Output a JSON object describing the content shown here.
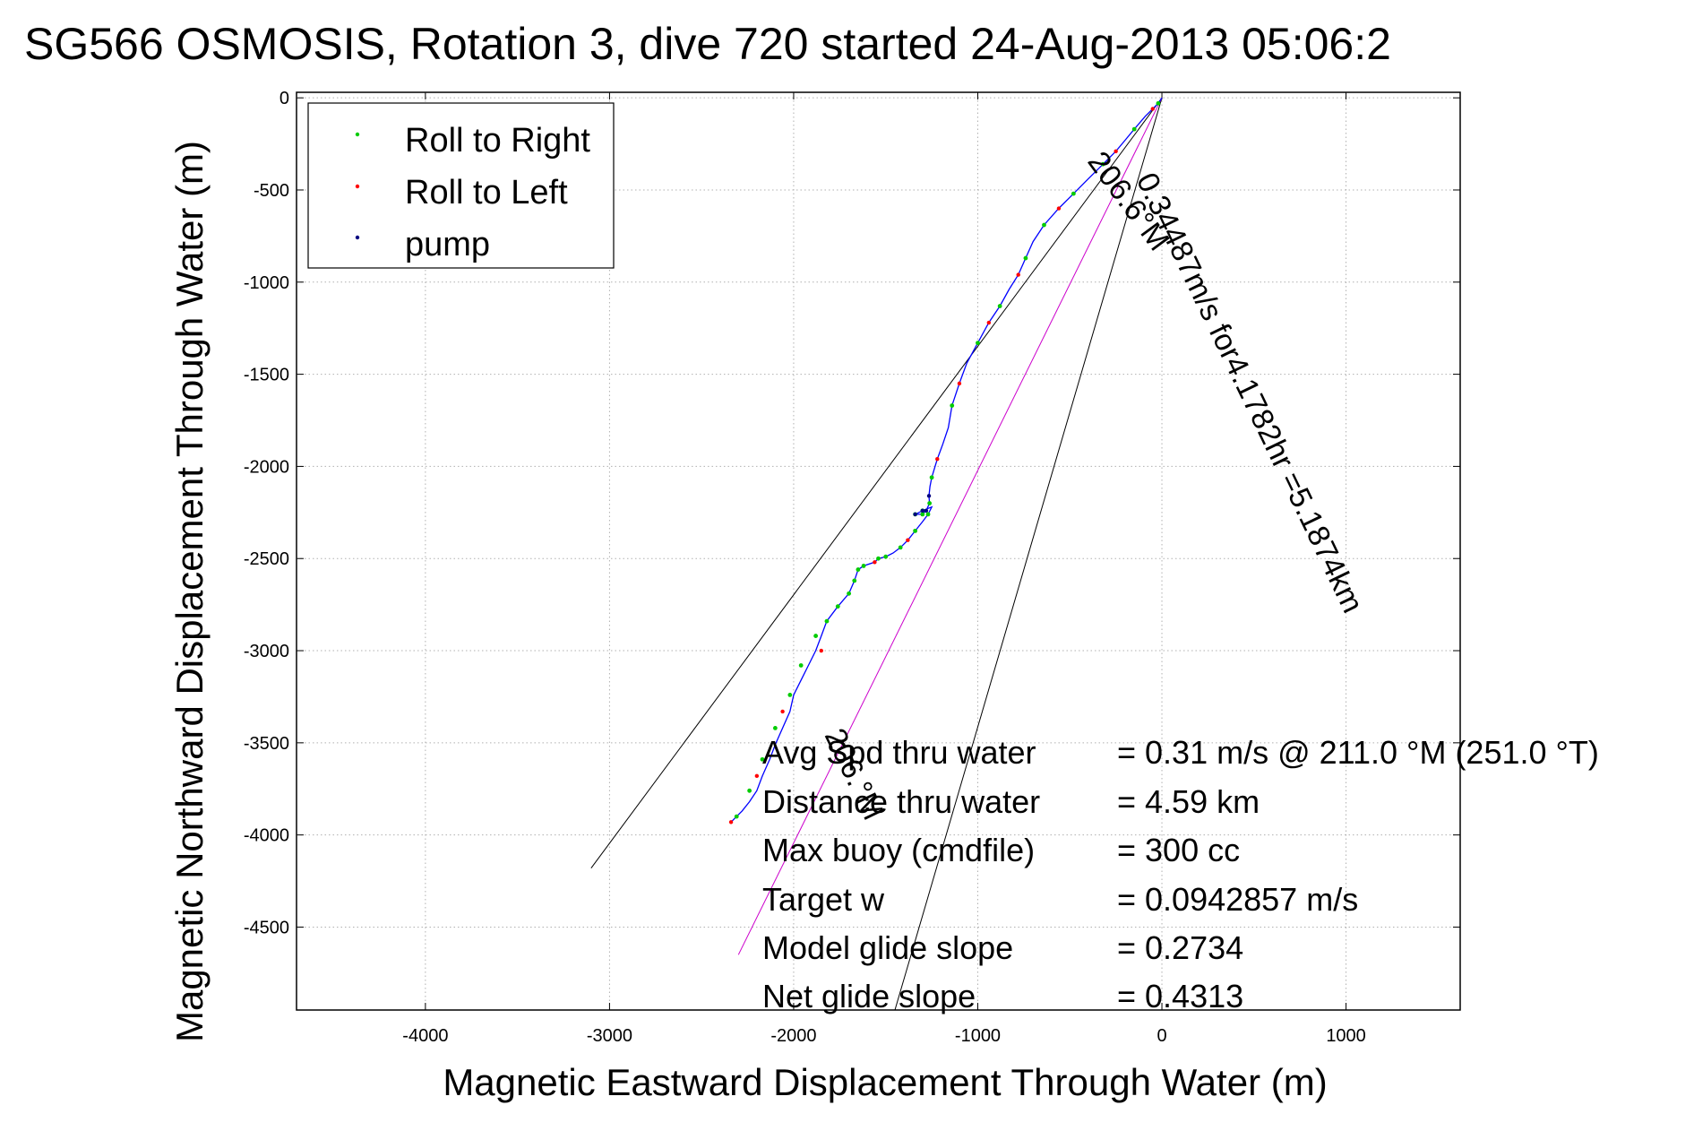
{
  "chart_data": {
    "type": "line",
    "title": "SG566 OSMOSIS, Rotation 3, dive 720 started 24-Aug-2013 05:06:2",
    "xlabel": "Magnetic Eastward Displacement Through Water (m)",
    "ylabel": "Magnetic Northward Displacement Through Water (m)",
    "xlim": [
      -4700,
      1620
    ],
    "ylim": [
      -4950,
      30
    ],
    "x_ticks": [
      -4000,
      -3000,
      -2000,
      -1000,
      0,
      1000
    ],
    "y_ticks": [
      0,
      -500,
      -1000,
      -1500,
      -2000,
      -2500,
      -3000,
      -3500,
      -4000,
      -4500
    ],
    "grid": true,
    "legend_position": "top-left",
    "legend": [
      {
        "label": "Roll to Right",
        "color": "#00cc00"
      },
      {
        "label": "Roll to Left",
        "color": "#ff0000"
      },
      {
        "label": "pump",
        "color": "#000080"
      }
    ],
    "track": {
      "color": "#0000ff",
      "x": [
        0,
        -20,
        -50,
        -90,
        -150,
        -200,
        -250,
        -320,
        -400,
        -480,
        -560,
        -640,
        -700,
        -740,
        -780,
        -830,
        -880,
        -940,
        -1000,
        -1060,
        -1100,
        -1140,
        -1160,
        -1190,
        -1220,
        -1250,
        -1260,
        -1265,
        -1262,
        -1280,
        -1300,
        -1340,
        -1300,
        -1250,
        -1270,
        -1300,
        -1340,
        -1380,
        -1420,
        -1460,
        -1500,
        -1540,
        -1560,
        -1620,
        -1650,
        -1670,
        -1700,
        -1760,
        -1820,
        -1850,
        -1880,
        -1920,
        -1960,
        -2000,
        -2020,
        -2060,
        -2100,
        -2130,
        -2170,
        -2200,
        -2240,
        -2280,
        -2310,
        -2340
      ],
      "y": [
        0,
        -30,
        -60,
        -100,
        -170,
        -230,
        -290,
        -360,
        -440,
        -520,
        -600,
        -690,
        -780,
        -870,
        -960,
        -1040,
        -1130,
        -1220,
        -1330,
        -1440,
        -1550,
        -1670,
        -1790,
        -1880,
        -1960,
        -2060,
        -2110,
        -2160,
        -2200,
        -2240,
        -2260,
        -2260,
        -2240,
        -2220,
        -2260,
        -2300,
        -2350,
        -2400,
        -2440,
        -2470,
        -2490,
        -2500,
        -2520,
        -2540,
        -2560,
        -2620,
        -2690,
        -2760,
        -2840,
        -2920,
        -3000,
        -3080,
        -3160,
        -3240,
        -3330,
        -3420,
        -3510,
        -3590,
        -3680,
        -3760,
        -3820,
        -3870,
        -3900,
        -3930
      ]
    },
    "roll_right": {
      "x": [
        -20,
        -150,
        -320,
        -480,
        -640,
        -740,
        -880,
        -1000,
        -1140,
        -1250,
        -1262,
        -1300,
        -1340,
        -1300,
        -1270,
        -1340,
        -1420,
        -1500,
        -1540,
        -1620,
        -1650,
        -1670,
        -1700,
        -1760,
        -1820,
        -1880,
        -1960,
        -2020,
        -2100,
        -2170,
        -2240,
        -2310
      ],
      "y": [
        -30,
        -170,
        -360,
        -520,
        -690,
        -870,
        -1130,
        -1330,
        -1670,
        -2060,
        -2200,
        -2260,
        -2260,
        -2240,
        -2260,
        -2350,
        -2440,
        -2490,
        -2500,
        -2540,
        -2560,
        -2620,
        -2690,
        -2760,
        -2840,
        -2920,
        -3080,
        -3240,
        -3420,
        -3590,
        -3760,
        -3900
      ]
    },
    "roll_left": {
      "x": [
        -50,
        -250,
        -560,
        -780,
        -940,
        -1100,
        -1220,
        -1380,
        -1560,
        -1850,
        -2060,
        -2200,
        -2340
      ],
      "y": [
        -60,
        -290,
        -600,
        -960,
        -1220,
        -1550,
        -1960,
        -2400,
        -2520,
        -3000,
        -3330,
        -3680,
        -3930
      ]
    },
    "pump": {
      "x": [
        -1265,
        -1280,
        -1340,
        -1300
      ],
      "y": [
        -2160,
        -2240,
        -2260,
        -2240
      ]
    },
    "reference_lines": [
      {
        "color": "#000000",
        "x": [
          0,
          -3100
        ],
        "y": [
          0,
          -4180
        ]
      },
      {
        "color": "#000000",
        "x": [
          0,
          -1450
        ],
        "y": [
          0,
          -4950
        ]
      },
      {
        "color": "#cc00cc",
        "x": [
          0,
          -2300
        ],
        "y": [
          0,
          -4650
        ]
      }
    ],
    "rotated_annotations": [
      "206.6°M",
      "0.34487m/s for4.1782hr =5.1874km",
      "206.°M"
    ],
    "stats": [
      {
        "label": "Avg Spd thru water",
        "value": "=  0.31 m/s @ 211.0 °M (251.0 °T)"
      },
      {
        "label": "Distance thru water",
        "value": "=  4.59 km"
      },
      {
        "label": "Max buoy (cmdfile)",
        "value": "= 300 cc"
      },
      {
        "label": "Target w",
        "value": "= 0.0942857 m/s"
      },
      {
        "label": "Model glide slope",
        "value": "= 0.2734"
      },
      {
        "label": "Net glide slope",
        "value": "= 0.4313"
      }
    ]
  }
}
